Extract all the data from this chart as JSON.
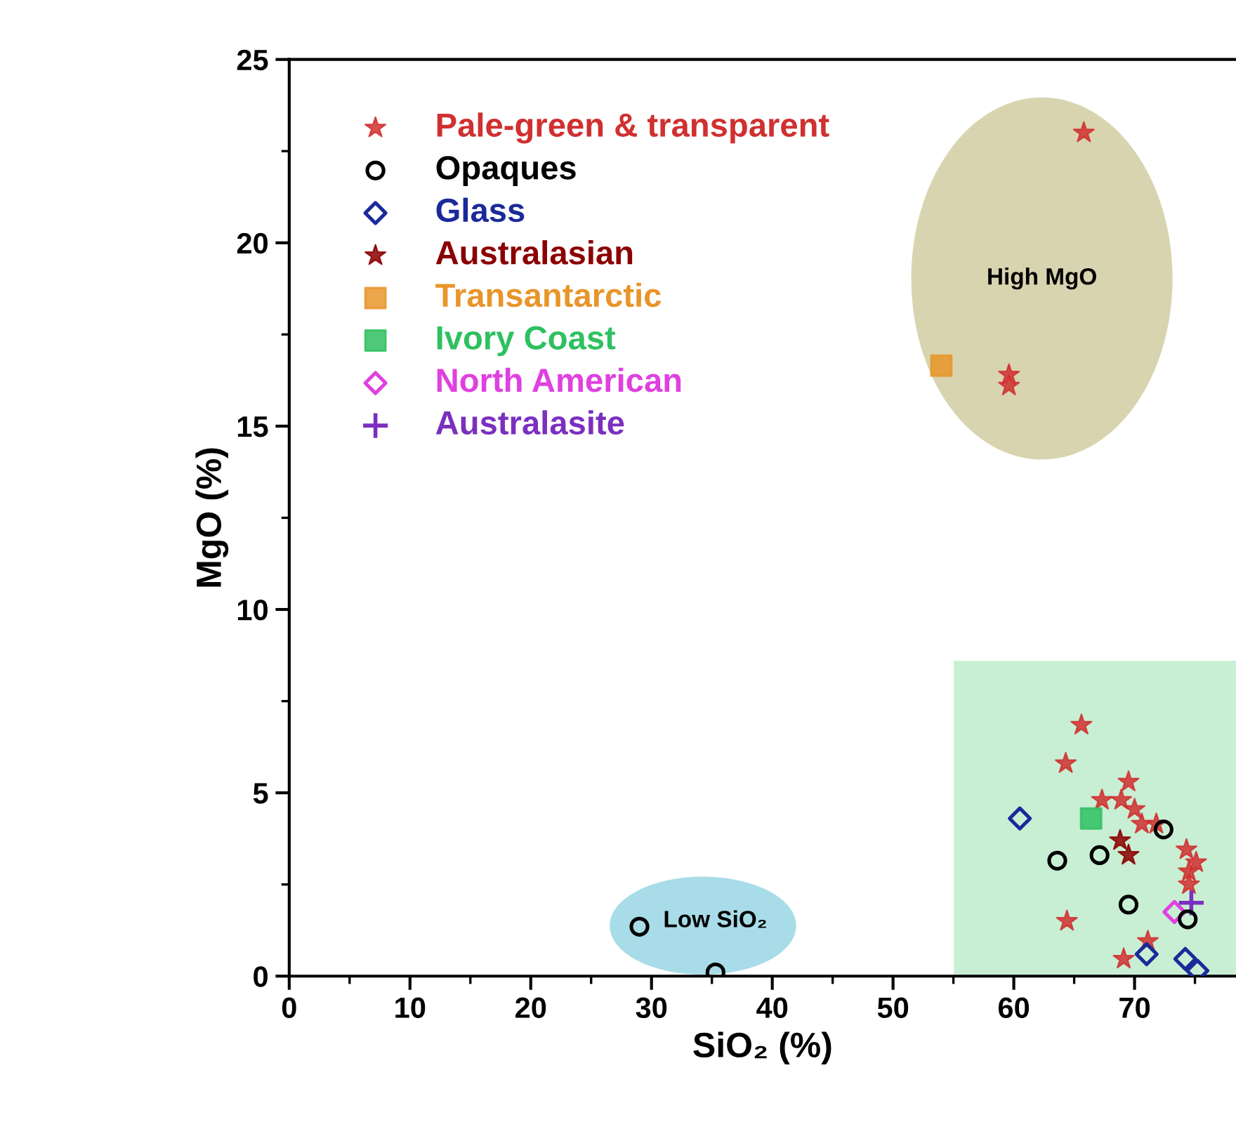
{
  "chart_data": {
    "type": "scatter",
    "xlabel": "SiO₂ (%)",
    "ylabel": "MgO (%)",
    "xlim": [
      0,
      78.4
    ],
    "ylim": [
      0,
      25
    ],
    "xticks": [
      0,
      10,
      20,
      30,
      40,
      50,
      60,
      70
    ],
    "yticks": [
      0,
      5,
      10,
      15,
      20,
      25
    ],
    "legend": "top left",
    "grid": false,
    "annotations": [
      "High MgO",
      "Low SiO₂"
    ],
    "series": [
      {
        "name": "Pale-green & transparent",
        "color": "#d03030",
        "marker": "star",
        "x": [
          65.6,
          64.3,
          69.5,
          67.3,
          68.9,
          70.0,
          70.6,
          71.8,
          74.3,
          75.1,
          74.5,
          74.5,
          64.4,
          69.1,
          71.1,
          65.8,
          59.6,
          59.6
        ],
        "values": [
          6.85,
          5.8,
          5.3,
          4.8,
          4.8,
          4.55,
          4.15,
          4.15,
          3.45,
          3.1,
          2.85,
          2.5,
          1.5,
          0.47,
          0.95,
          23.0,
          16.4,
          16.1
        ]
      },
      {
        "name": "Opaques",
        "color": "#000000",
        "marker": "circle",
        "x": [
          63.6,
          67.1,
          72.4,
          69.5,
          74.4,
          29.0,
          35.3
        ],
        "values": [
          3.15,
          3.3,
          4.0,
          1.95,
          1.55,
          1.35,
          0.1
        ]
      },
      {
        "name": "Glass",
        "color": "#1a2a9a",
        "marker": "diamond",
        "x": [
          60.5,
          71.0,
          74.2,
          75.2
        ],
        "values": [
          4.3,
          0.6,
          0.47,
          0.15
        ]
      },
      {
        "name": "Australasian",
        "color": "#8b0000",
        "marker": "star",
        "x": [
          68.8,
          69.5
        ],
        "values": [
          3.7,
          3.3
        ]
      },
      {
        "name": "Transantarctic",
        "color": "#e8952a",
        "marker": "square",
        "x": [
          54.0
        ],
        "values": [
          16.65
        ]
      },
      {
        "name": "Ivory Coast",
        "color": "#2fc060",
        "marker": "square",
        "x": [
          66.4
        ],
        "values": [
          4.3
        ]
      },
      {
        "name": "North American",
        "color": "#e040e0",
        "marker": "diamond",
        "x": [
          73.3
        ],
        "values": [
          1.75
        ]
      },
      {
        "name": "Australasite",
        "color": "#7b2fbf",
        "marker": "cross",
        "x": [
          74.7
        ],
        "values": [
          2.0
        ]
      }
    ]
  }
}
